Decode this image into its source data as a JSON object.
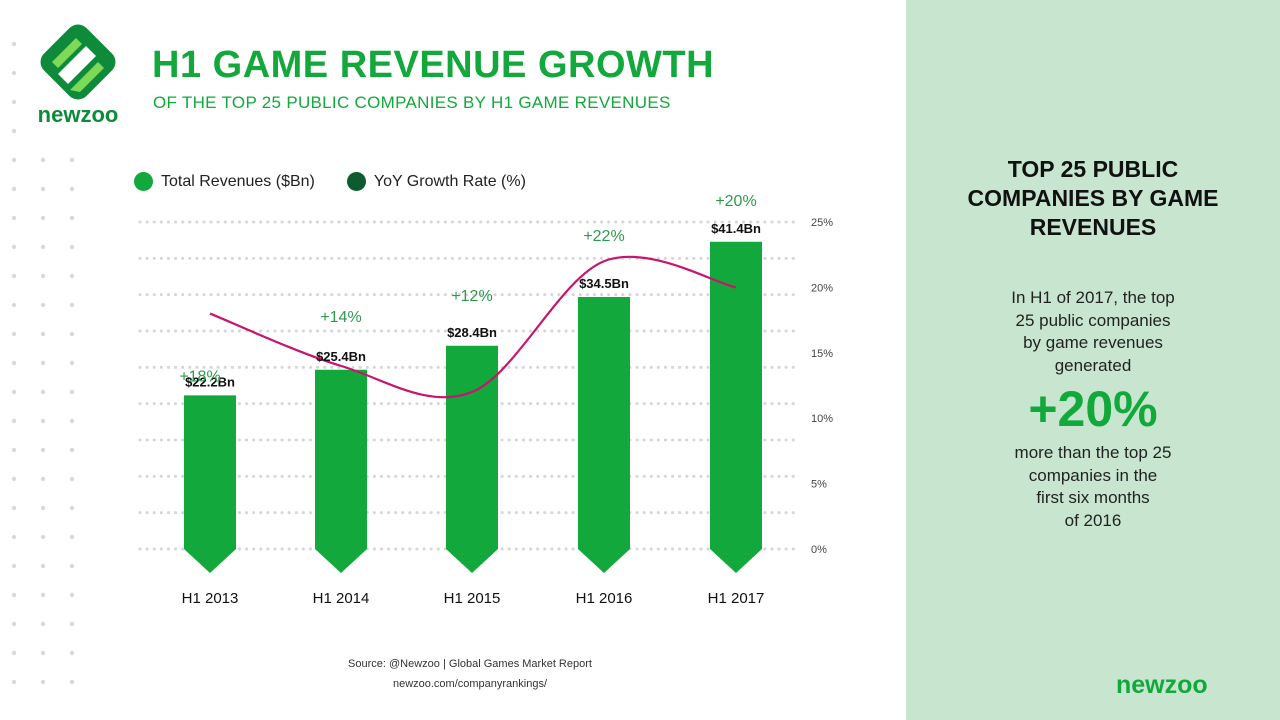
{
  "brand": {
    "logo_text": "newzoo",
    "green": "#12a83c",
    "dark_green": "#0d5c30",
    "line_color": "#c8146e",
    "panel_color": "#c8e6cf"
  },
  "header": {
    "title": "H1 GAME REVENUE GROWTH",
    "subtitle": "OF THE TOP 25 PUBLIC COMPANIES BY H1 GAME REVENUES"
  },
  "legend": {
    "revenue_label": "Total Revenues ($Bn)",
    "growth_label": "YoY Growth Rate (%)"
  },
  "chart_data": {
    "type": "bar",
    "title": "H1 GAME REVENUE GROWTH",
    "categories": [
      "H1 2013",
      "H1 2014",
      "H1 2015",
      "H1 2016",
      "H1 2017"
    ],
    "series": [
      {
        "name": "Total Revenues ($Bn)",
        "type": "bar",
        "values": [
          22.2,
          25.4,
          28.4,
          34.5,
          41.4
        ],
        "labels": [
          "$22.2Bn",
          "$25.4Bn",
          "$28.4Bn",
          "$34.5Bn",
          "$41.4Bn"
        ]
      },
      {
        "name": "YoY Growth Rate (%)",
        "type": "line",
        "axis": "right",
        "values": [
          18,
          14,
          12,
          22,
          20
        ],
        "labels": [
          "+18%",
          "+14%",
          "+12%",
          "+22%",
          "+20%"
        ]
      }
    ],
    "y2_ticks": [
      "25%",
      "20%",
      "15%",
      "10%",
      "5%",
      "0%"
    ],
    "y2lim": [
      0,
      25
    ],
    "grid": true,
    "legend": "top-left"
  },
  "footer": {
    "source": "Source: @Newzoo | Global Games Market Report",
    "url": "newzoo.com/companyrankings/"
  },
  "side_panel": {
    "title_lines": [
      "TOP 25 PUBLIC",
      "COMPANIES BY GAME",
      "REVENUES"
    ],
    "intro_lines": [
      "In H1 of 2017, the top",
      "25 public companies",
      "by game revenues",
      "generated"
    ],
    "highlight": "+20%",
    "outro_lines": [
      "more than the top 25",
      "companies in the",
      "first six months",
      "of 2016"
    ],
    "logo_text": "newzoo"
  }
}
